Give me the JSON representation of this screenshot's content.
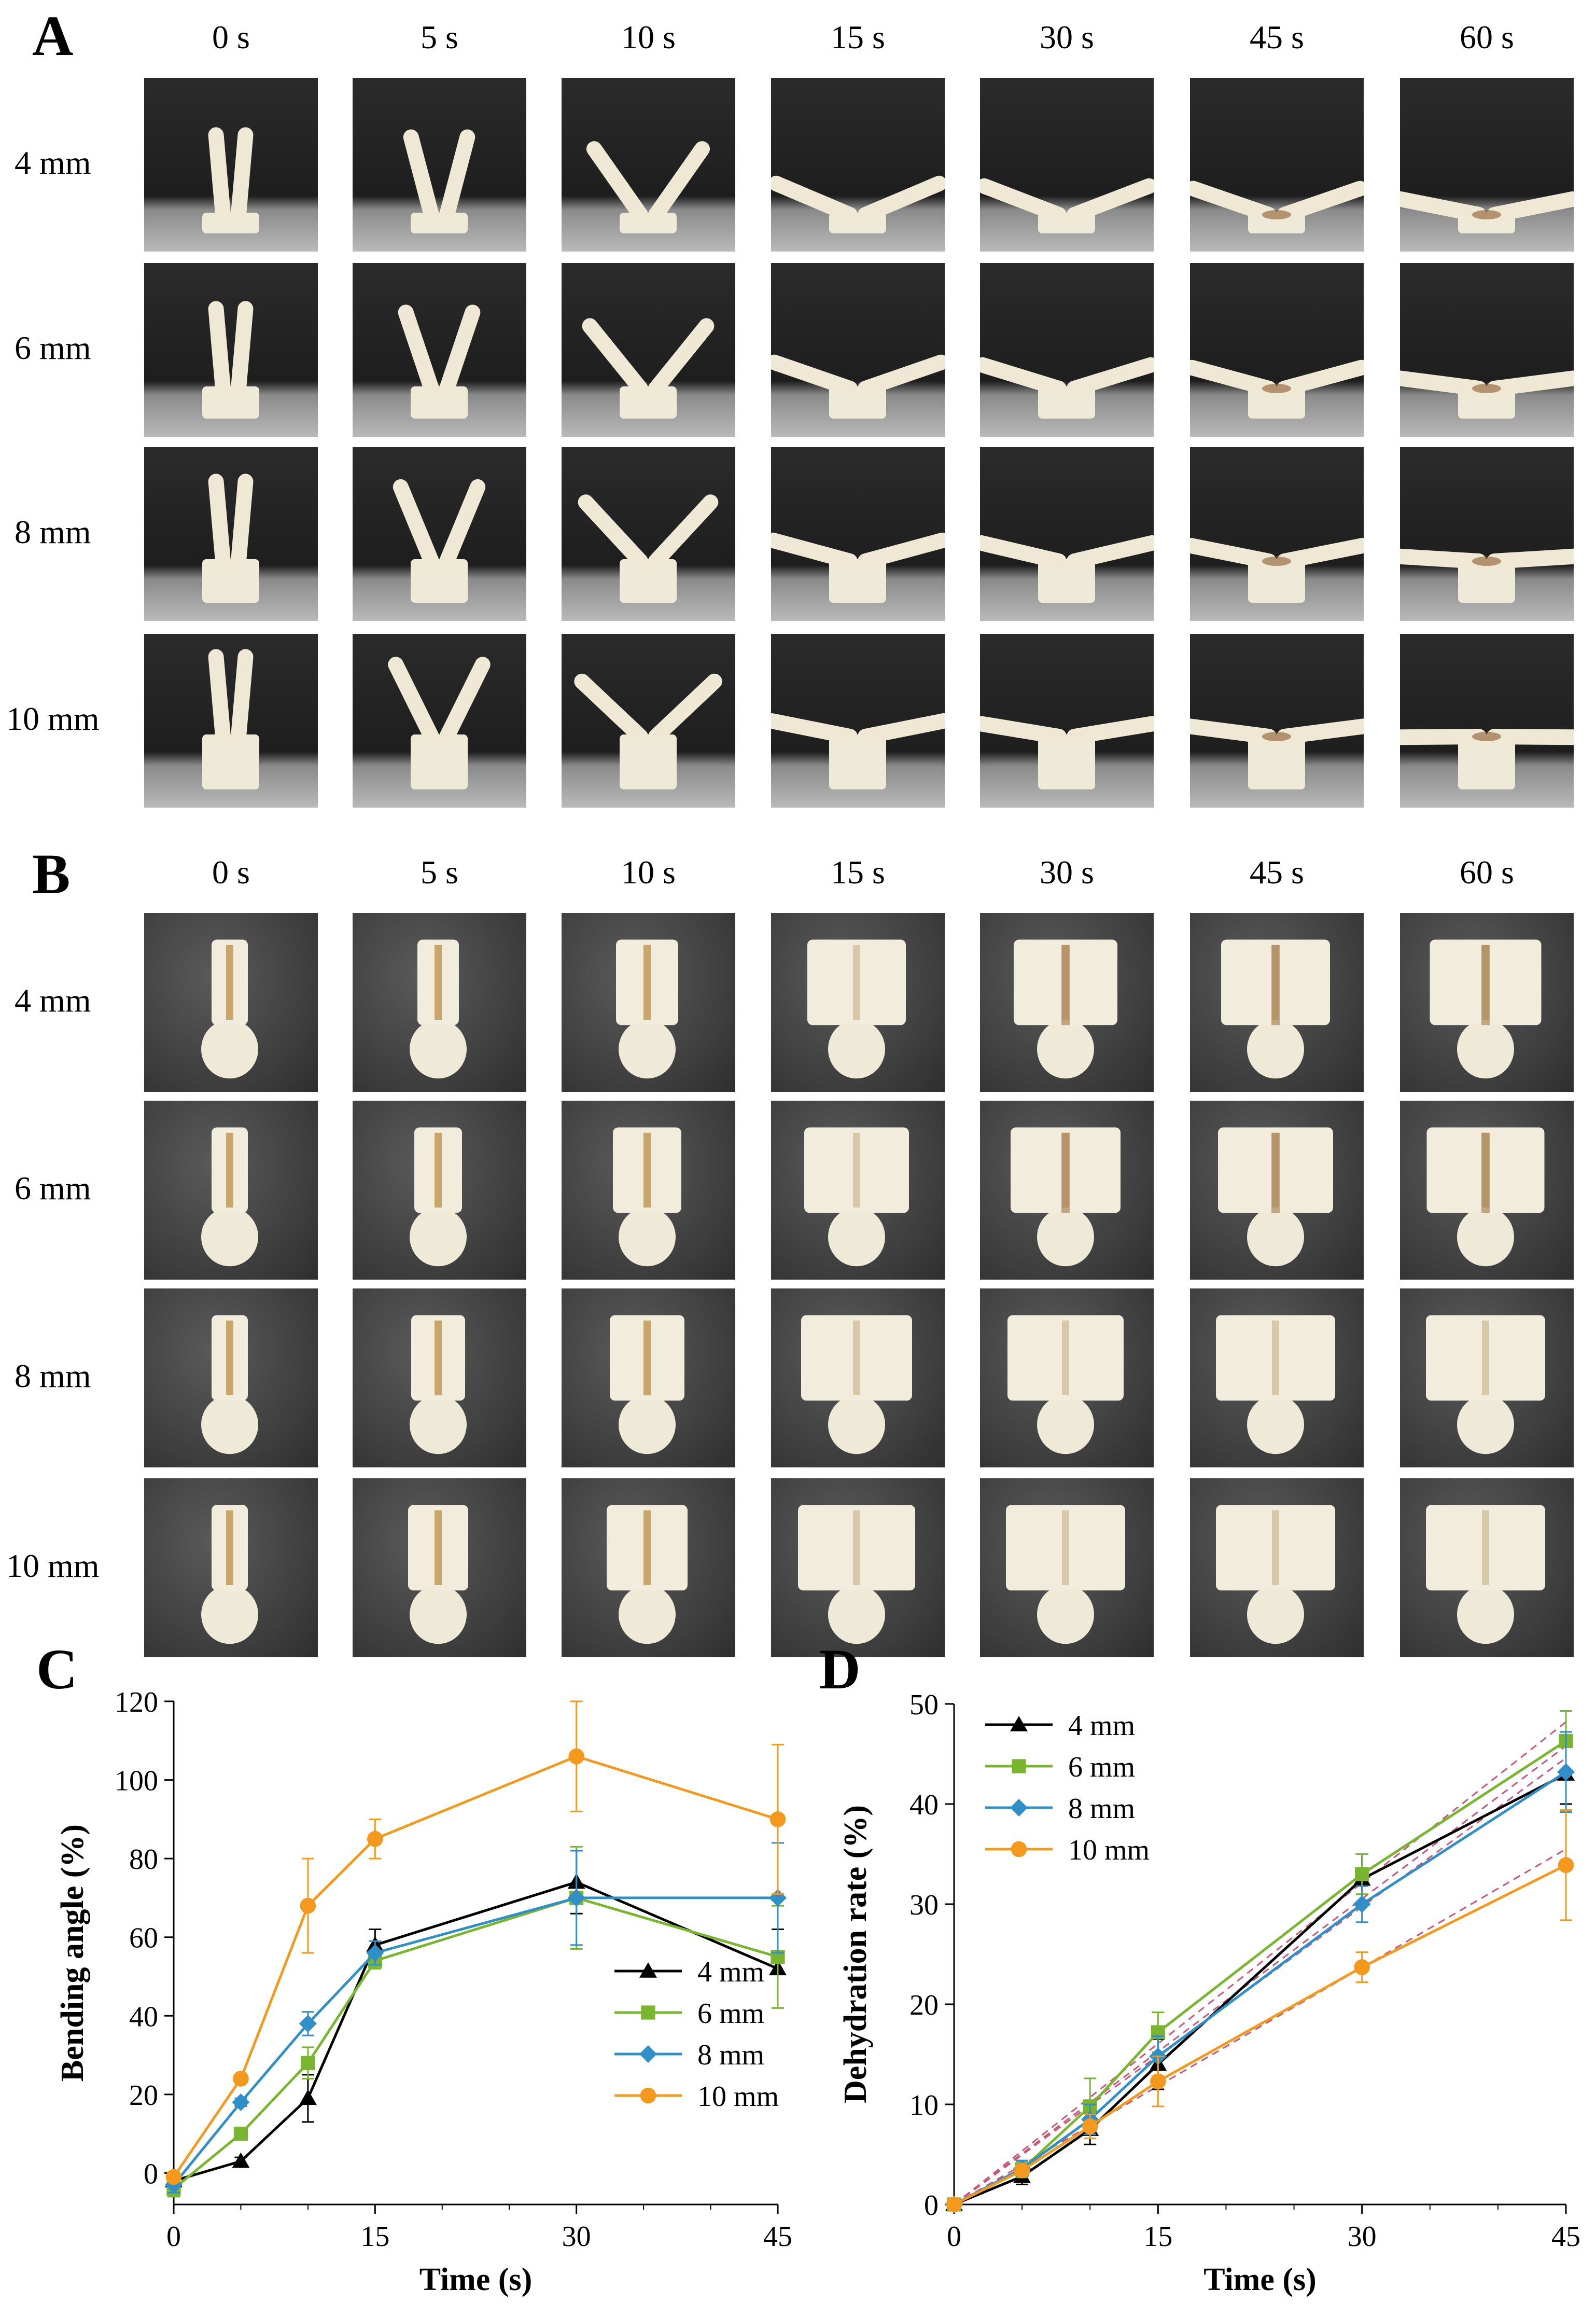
{
  "panels": {
    "A": {
      "label": "A",
      "columns": [
        "0 s",
        "5 s",
        "10 s",
        "15 s",
        "30 s",
        "45 s",
        "60 s"
      ],
      "rows": [
        "4 mm",
        "6 mm",
        "8 mm",
        "10 mm"
      ]
    },
    "B": {
      "label": "B",
      "columns": [
        "0 s",
        "5 s",
        "10 s",
        "15 s",
        "30 s",
        "45 s",
        "60 s"
      ],
      "rows": [
        "4 mm",
        "6 mm",
        "8 mm",
        "10 mm"
      ]
    }
  },
  "colors": {
    "4mm": "#000000",
    "6mm": "#7ab530",
    "8mm": "#2f8fc6",
    "10mm": "#f39a1e",
    "fit": "#c8587a"
  },
  "chart_data": [
    {
      "panel": "C",
      "type": "line",
      "title": "",
      "xlabel": "Time (s)",
      "ylabel": "Bending angle (%)",
      "xlim": [
        0,
        45
      ],
      "ylim": [
        -8,
        120
      ],
      "xticks": [
        0,
        15,
        30,
        45
      ],
      "yticks": [
        0,
        20,
        40,
        60,
        80,
        100,
        120
      ],
      "legend_position": "bottom-right",
      "series": [
        {
          "name": "4 mm",
          "marker": "triangle",
          "color_key": "4mm",
          "x": [
            0,
            5,
            10,
            15,
            30,
            45
          ],
          "y": [
            -2,
            3,
            19,
            58,
            74,
            52
          ],
          "err": [
            2,
            1,
            6,
            4,
            8,
            10
          ]
        },
        {
          "name": "6 mm",
          "marker": "square",
          "color_key": "6mm",
          "x": [
            0,
            5,
            10,
            15,
            30,
            45
          ],
          "y": [
            -4,
            10,
            28,
            54,
            70,
            55
          ],
          "err": [
            2,
            1,
            4,
            2,
            13,
            13
          ]
        },
        {
          "name": "8 mm",
          "marker": "diamond",
          "color_key": "8mm",
          "x": [
            0,
            5,
            10,
            15,
            30,
            45
          ],
          "y": [
            -3,
            18,
            38,
            56,
            70,
            70
          ],
          "err": [
            2,
            1,
            3,
            3,
            12,
            14
          ]
        },
        {
          "name": "10 mm",
          "marker": "circle",
          "color_key": "10mm",
          "x": [
            0,
            5,
            10,
            15,
            30,
            45
          ],
          "y": [
            -1,
            24,
            68,
            85,
            106,
            90
          ],
          "err": [
            1,
            1,
            12,
            5,
            14,
            19
          ]
        }
      ]
    },
    {
      "panel": "D",
      "type": "line",
      "title": "",
      "xlabel": "Time (s)",
      "ylabel": "Dehydration rate (%)",
      "xlim": [
        0,
        45
      ],
      "ylim": [
        0,
        50
      ],
      "xticks": [
        0,
        15,
        30,
        45
      ],
      "yticks": [
        0,
        10,
        20,
        30,
        40,
        50
      ],
      "legend_position": "top-left",
      "series": [
        {
          "name": "4 mm",
          "marker": "triangle",
          "color_key": "4mm",
          "x": [
            0,
            5,
            10,
            15,
            30,
            45
          ],
          "y": [
            0,
            2.8,
            7.5,
            14,
            32.5,
            43
          ],
          "err": [
            0,
            0.8,
            1.5,
            2.5,
            2.5,
            3
          ]
        },
        {
          "name": "6 mm",
          "marker": "square",
          "color_key": "6mm",
          "x": [
            0,
            5,
            10,
            15,
            30,
            45
          ],
          "y": [
            0,
            3.5,
            9.8,
            17.2,
            33,
            46.3
          ],
          "err": [
            0,
            0.8,
            2.8,
            2,
            2,
            3
          ]
        },
        {
          "name": "8 mm",
          "marker": "diamond",
          "color_key": "8mm",
          "x": [
            0,
            5,
            10,
            15,
            30,
            45
          ],
          "y": [
            0,
            3.6,
            8.5,
            14.8,
            30,
            43.2
          ],
          "err": [
            0,
            0.8,
            1.5,
            2,
            1.8,
            4
          ]
        },
        {
          "name": "10 mm",
          "marker": "circle",
          "color_key": "10mm",
          "x": [
            0,
            5,
            10,
            15,
            30,
            45
          ],
          "y": [
            0,
            3.4,
            7.8,
            12.3,
            23.7,
            33.9
          ],
          "err": [
            0,
            0.5,
            1.2,
            2.5,
            1.5,
            5.5
          ]
        }
      ],
      "fits": [
        {
          "series": "4 mm",
          "x": [
            0,
            45
          ],
          "y": [
            0,
            45.8
          ]
        },
        {
          "series": "6 mm",
          "x": [
            0,
            45
          ],
          "y": [
            0,
            48.2
          ]
        },
        {
          "series": "8 mm",
          "x": [
            0,
            45
          ],
          "y": [
            0,
            44.6
          ]
        },
        {
          "series": "10 mm",
          "x": [
            0,
            45
          ],
          "y": [
            0,
            35.5
          ]
        }
      ]
    }
  ]
}
